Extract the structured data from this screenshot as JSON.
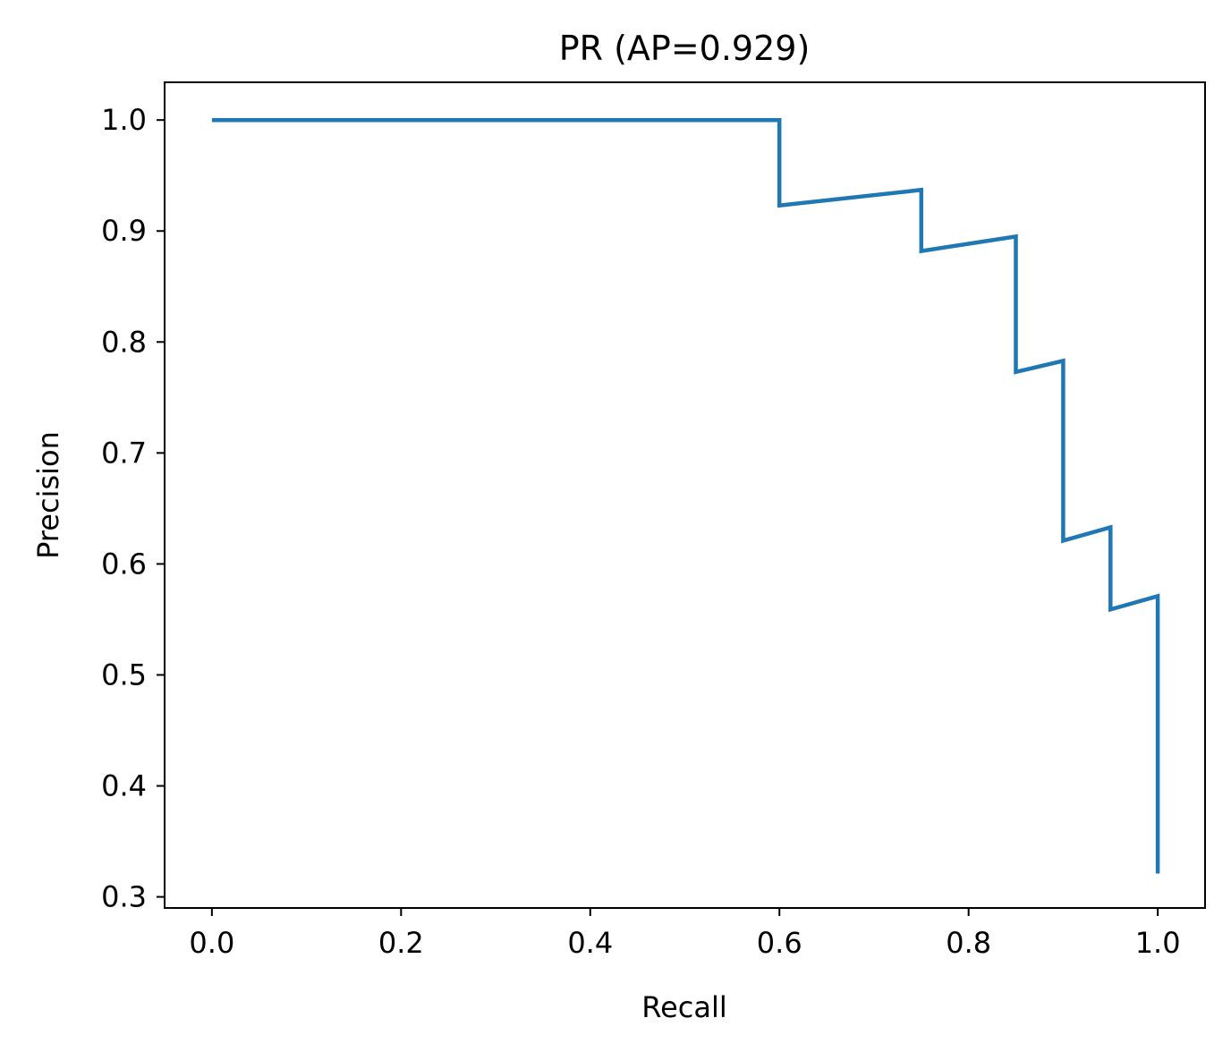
{
  "chart_data": {
    "type": "line",
    "title": "PR (AP=0.929)",
    "xlabel": "Recall",
    "ylabel": "Precision",
    "xlim": [
      -0.05,
      1.05
    ],
    "ylim": [
      0.29,
      1.034
    ],
    "x_ticks": [
      0.0,
      0.2,
      0.4,
      0.6,
      0.8,
      1.0
    ],
    "x_tick_labels": [
      "0.0",
      "0.2",
      "0.4",
      "0.6",
      "0.8",
      "1.0"
    ],
    "y_ticks": [
      0.3,
      0.4,
      0.5,
      0.6,
      0.7,
      0.8,
      0.9,
      1.0
    ],
    "y_tick_labels": [
      "0.3",
      "0.4",
      "0.5",
      "0.6",
      "0.7",
      "0.8",
      "0.9",
      "1.0"
    ],
    "grid": false,
    "legend": "none",
    "series": [
      {
        "color": "#1f77b4",
        "x": [
          0.0,
          0.6,
          0.6,
          0.75,
          0.75,
          0.85,
          0.85,
          0.9,
          0.9,
          0.95,
          0.95,
          1.0,
          1.0
        ],
        "y": [
          1.0,
          1.0,
          0.923,
          0.937,
          0.882,
          0.895,
          0.773,
          0.783,
          0.621,
          0.633,
          0.559,
          0.571,
          0.321
        ]
      }
    ]
  }
}
